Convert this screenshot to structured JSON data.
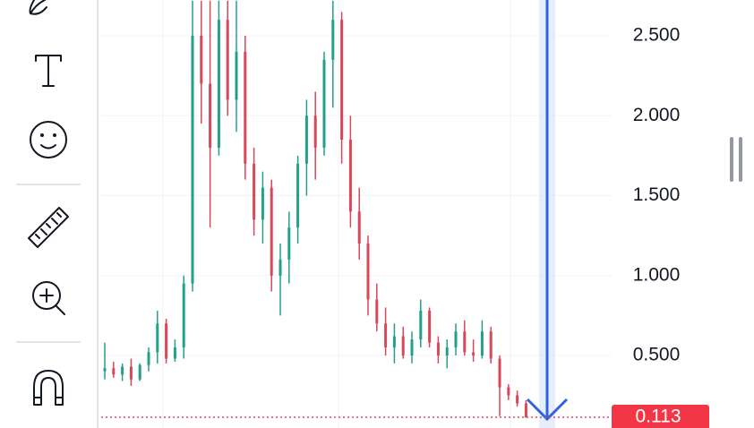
{
  "chart_data": {
    "type": "candlestick",
    "open": [
      0.4,
      0.42,
      0.38,
      0.43,
      0.35,
      0.44,
      0.52,
      0.7,
      0.48,
      0.55,
      0.95,
      2.5,
      2.2,
      1.8,
      2.6,
      2.1,
      2.4,
      1.7,
      1.35,
      1.55,
      1.0,
      1.1,
      1.3,
      1.7,
      2.0,
      1.8,
      2.35,
      2.6,
      1.85,
      1.4,
      1.2,
      0.85,
      0.7,
      0.55,
      0.62,
      0.5,
      0.6,
      0.78,
      0.58,
      0.5,
      0.55,
      0.65,
      0.52,
      0.5,
      0.65,
      0.48,
      0.3,
      0.25,
      0.2
    ],
    "high": [
      0.58,
      0.46,
      0.45,
      0.48,
      0.45,
      0.55,
      0.78,
      0.73,
      0.6,
      1.0,
      2.72,
      2.72,
      2.72,
      2.72,
      2.72,
      2.72,
      2.5,
      1.8,
      1.65,
      1.6,
      1.2,
      1.4,
      1.75,
      2.1,
      2.15,
      2.4,
      2.72,
      2.65,
      2.0,
      1.55,
      1.25,
      0.95,
      0.8,
      0.7,
      0.68,
      0.65,
      0.85,
      0.8,
      0.62,
      0.6,
      0.7,
      0.72,
      0.6,
      0.72,
      0.68,
      0.5,
      0.32,
      0.28,
      0.22
    ],
    "low": [
      0.35,
      0.36,
      0.34,
      0.31,
      0.34,
      0.4,
      0.45,
      0.45,
      0.46,
      0.48,
      0.9,
      1.95,
      1.3,
      1.75,
      2.0,
      1.9,
      1.6,
      1.25,
      1.2,
      0.9,
      0.75,
      0.95,
      1.2,
      1.5,
      1.6,
      1.75,
      2.05,
      1.7,
      1.3,
      1.1,
      0.75,
      0.65,
      0.5,
      0.45,
      0.48,
      0.45,
      0.55,
      0.55,
      0.45,
      0.42,
      0.5,
      0.5,
      0.46,
      0.48,
      0.45,
      0.12,
      0.22,
      0.18,
      0.11
    ],
    "close": [
      0.42,
      0.38,
      0.43,
      0.35,
      0.44,
      0.52,
      0.7,
      0.48,
      0.55,
      0.95,
      2.5,
      2.2,
      1.8,
      2.6,
      2.1,
      2.4,
      1.7,
      1.35,
      1.55,
      1.0,
      1.1,
      1.3,
      1.7,
      2.0,
      1.8,
      2.35,
      2.6,
      1.85,
      1.4,
      1.2,
      0.85,
      0.7,
      0.55,
      0.62,
      0.5,
      0.6,
      0.78,
      0.58,
      0.5,
      0.55,
      0.65,
      0.52,
      0.5,
      0.65,
      0.48,
      0.3,
      0.25,
      0.2,
      0.113
    ],
    "up_color": "#22a08a",
    "down_color": "#d9475a",
    "last_price": 0.113,
    "ylim": [
      0.046,
      2.724
    ],
    "yticks": [
      {
        "value": 0.5,
        "label": "0.500"
      },
      {
        "value": 1.0,
        "label": "1.000"
      },
      {
        "value": 1.5,
        "label": "1.500"
      },
      {
        "value": 2.0,
        "label": "2.000"
      },
      {
        "value": 2.5,
        "label": "2.500"
      }
    ],
    "grid": true
  }
}
